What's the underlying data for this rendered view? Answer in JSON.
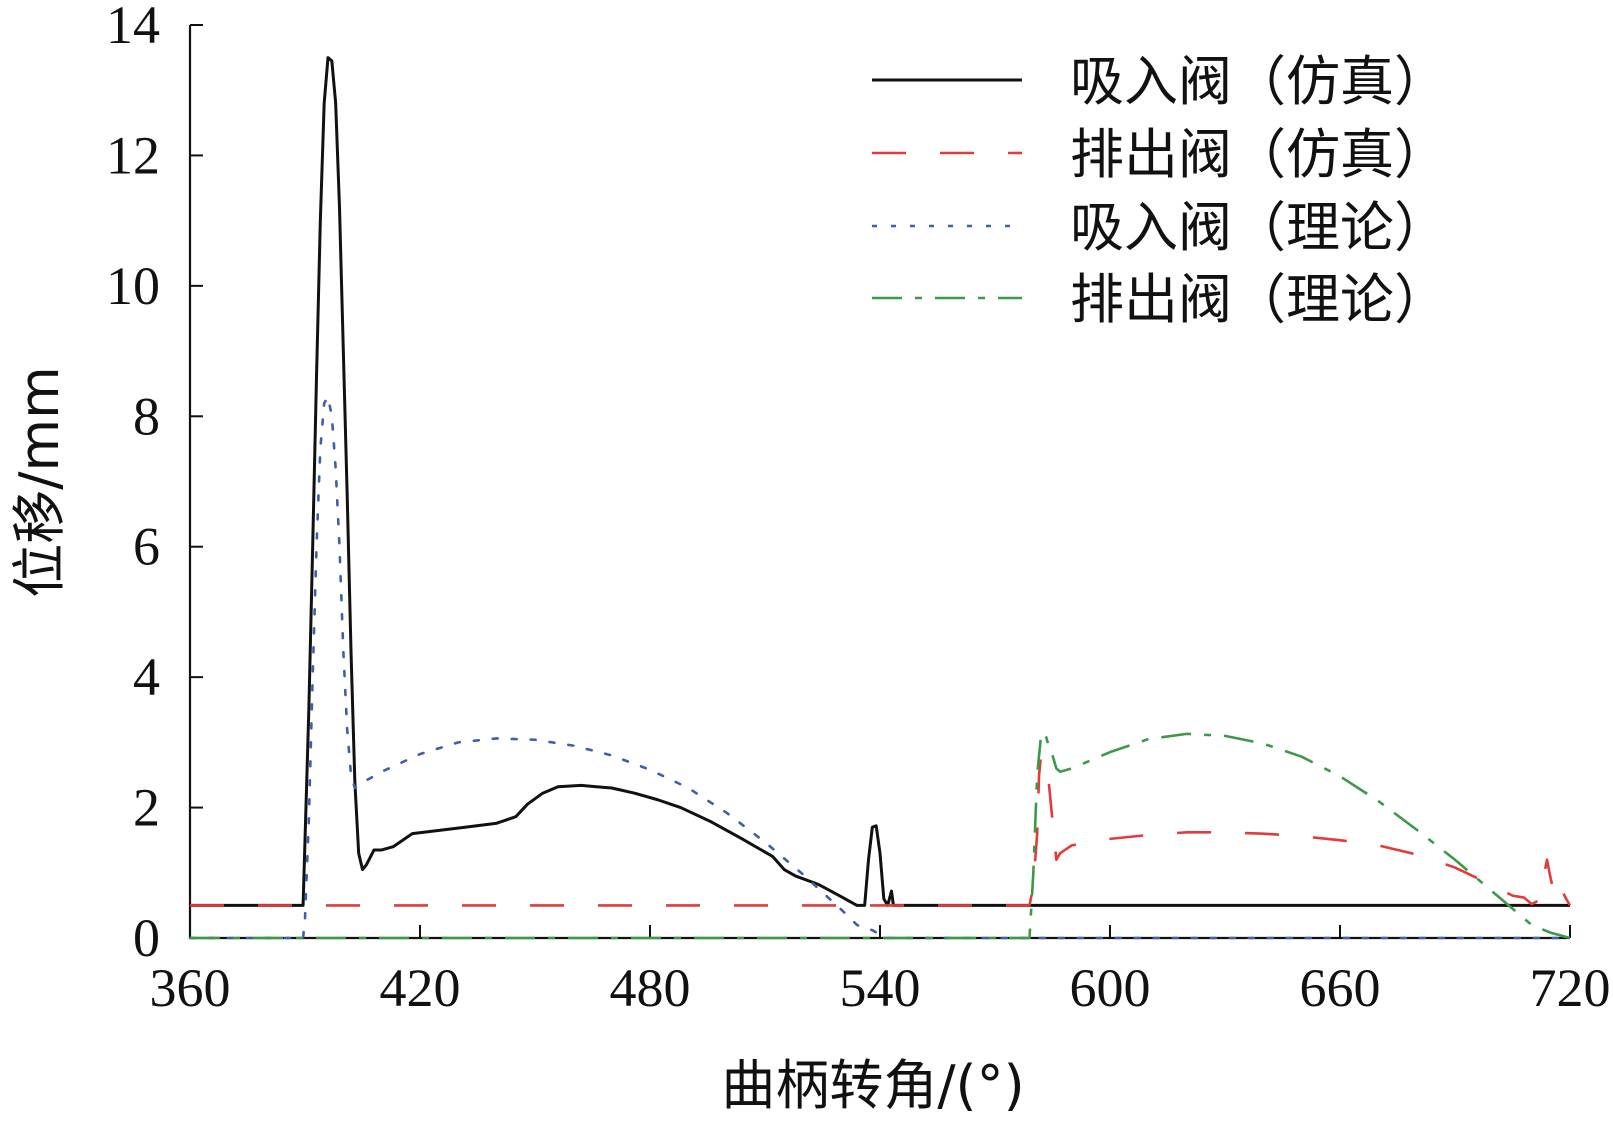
{
  "chart_data": {
    "type": "line",
    "title": "",
    "xlabel": "曲柄转角/(°)",
    "ylabel": "位移/mm",
    "xlim": [
      360,
      720
    ],
    "ylim": [
      0,
      14
    ],
    "xticks": [
      360,
      420,
      480,
      540,
      600,
      660,
      720
    ],
    "yticks": [
      0,
      2,
      4,
      6,
      8,
      10,
      12,
      14
    ],
    "grid": false,
    "legend_position": "top-right",
    "series": [
      {
        "name": "吸入阀（仿真）",
        "color": "#111111",
        "dash": "solid",
        "points": [
          [
            360,
            0.5
          ],
          [
            389.5,
            0.5
          ],
          [
            390,
            1.5
          ],
          [
            391,
            3.5
          ],
          [
            392,
            6.0
          ],
          [
            393,
            8.6
          ],
          [
            394,
            11.0
          ],
          [
            395,
            12.8
          ],
          [
            396,
            13.5
          ],
          [
            397,
            13.45
          ],
          [
            398,
            12.8
          ],
          [
            399,
            11.2
          ],
          [
            400,
            9.0
          ],
          [
            401,
            6.8
          ],
          [
            402,
            4.4
          ],
          [
            403,
            2.4
          ],
          [
            404,
            1.3
          ],
          [
            405,
            1.05
          ],
          [
            406,
            1.12
          ],
          [
            408,
            1.35
          ],
          [
            410,
            1.35
          ],
          [
            413,
            1.4
          ],
          [
            416,
            1.52
          ],
          [
            418,
            1.6
          ],
          [
            425,
            1.65
          ],
          [
            432,
            1.7
          ],
          [
            440,
            1.76
          ],
          [
            445,
            1.86
          ],
          [
            448,
            2.05
          ],
          [
            452,
            2.22
          ],
          [
            456,
            2.32
          ],
          [
            462,
            2.34
          ],
          [
            466,
            2.32
          ],
          [
            470,
            2.3
          ],
          [
            476,
            2.22
          ],
          [
            482,
            2.12
          ],
          [
            488,
            2.0
          ],
          [
            496,
            1.78
          ],
          [
            504,
            1.52
          ],
          [
            512,
            1.25
          ],
          [
            515,
            1.05
          ],
          [
            518,
            0.95
          ],
          [
            524,
            0.82
          ],
          [
            530,
            0.63
          ],
          [
            534,
            0.5
          ],
          [
            536,
            0.5
          ],
          [
            537,
            1.2
          ],
          [
            538,
            1.7
          ],
          [
            539,
            1.72
          ],
          [
            540,
            1.3
          ],
          [
            541,
            0.6
          ],
          [
            542,
            0.5
          ],
          [
            543,
            0.72
          ],
          [
            543.5,
            0.5
          ],
          [
            720,
            0.5
          ]
        ]
      },
      {
        "name": "排出阀（仿真）",
        "color": "#e23b3b",
        "dash": "long",
        "points": [
          [
            360,
            0.5
          ],
          [
            579,
            0.5
          ],
          [
            580,
            0.8
          ],
          [
            581,
            1.6
          ],
          [
            581.5,
            2.5
          ],
          [
            582,
            2.8
          ],
          [
            583,
            2.5
          ],
          [
            584,
            2.4
          ],
          [
            585,
            1.8
          ],
          [
            586,
            1.2
          ],
          [
            587,
            1.3
          ],
          [
            590,
            1.42
          ],
          [
            600,
            1.52
          ],
          [
            610,
            1.58
          ],
          [
            620,
            1.62
          ],
          [
            630,
            1.62
          ],
          [
            640,
            1.6
          ],
          [
            650,
            1.56
          ],
          [
            660,
            1.5
          ],
          [
            670,
            1.42
          ],
          [
            680,
            1.28
          ],
          [
            690,
            1.08
          ],
          [
            700,
            0.8
          ],
          [
            705,
            0.65
          ],
          [
            708,
            0.62
          ],
          [
            710,
            0.52
          ],
          [
            712,
            0.58
          ],
          [
            713,
            0.9
          ],
          [
            714,
            1.2
          ],
          [
            715,
            0.9
          ],
          [
            716,
            0.65
          ],
          [
            717,
            0.55
          ],
          [
            718,
            0.72
          ],
          [
            719,
            0.6
          ],
          [
            720,
            0.5
          ]
        ]
      },
      {
        "name": "吸入阀（理论）",
        "color": "#3f5fa8",
        "dash": "dot",
        "points": [
          [
            360,
            0
          ],
          [
            389.5,
            0
          ],
          [
            390,
            0.3
          ],
          [
            391,
            1.8
          ],
          [
            392,
            4.0
          ],
          [
            393,
            6.0
          ],
          [
            394,
            7.5
          ],
          [
            395,
            8.2
          ],
          [
            396,
            8.3
          ],
          [
            397,
            8.0
          ],
          [
            398,
            7.2
          ],
          [
            399,
            6.0
          ],
          [
            400,
            4.4
          ],
          [
            401,
            3.2
          ],
          [
            402,
            2.5
          ],
          [
            403,
            2.3
          ],
          [
            404,
            2.35
          ],
          [
            410,
            2.55
          ],
          [
            420,
            2.82
          ],
          [
            430,
            3.0
          ],
          [
            440,
            3.06
          ],
          [
            450,
            3.04
          ],
          [
            460,
            2.95
          ],
          [
            470,
            2.8
          ],
          [
            480,
            2.58
          ],
          [
            490,
            2.3
          ],
          [
            500,
            1.92
          ],
          [
            510,
            1.47
          ],
          [
            520,
            0.97
          ],
          [
            530,
            0.43
          ],
          [
            534,
            0.2
          ],
          [
            536,
            0.15
          ],
          [
            538,
            0.12
          ],
          [
            540,
            0.05
          ],
          [
            541,
            0
          ],
          [
            720,
            0
          ]
        ]
      },
      {
        "name": "排出阀（理论）",
        "color": "#3d9948",
        "dash": "dashdot",
        "points": [
          [
            360,
            0
          ],
          [
            579,
            0
          ],
          [
            580,
            1.0
          ],
          [
            581,
            2.5
          ],
          [
            582,
            3.1
          ],
          [
            583,
            3.15
          ],
          [
            584,
            2.95
          ],
          [
            585,
            2.8
          ],
          [
            586,
            2.6
          ],
          [
            587,
            2.55
          ],
          [
            590,
            2.6
          ],
          [
            600,
            2.85
          ],
          [
            610,
            3.05
          ],
          [
            620,
            3.13
          ],
          [
            630,
            3.1
          ],
          [
            640,
            2.98
          ],
          [
            650,
            2.78
          ],
          [
            660,
            2.48
          ],
          [
            670,
            2.1
          ],
          [
            680,
            1.66
          ],
          [
            690,
            1.2
          ],
          [
            700,
            0.7
          ],
          [
            706,
            0.4
          ],
          [
            710,
            0.2
          ],
          [
            715,
            0.08
          ],
          [
            720,
            0
          ]
        ]
      }
    ]
  }
}
